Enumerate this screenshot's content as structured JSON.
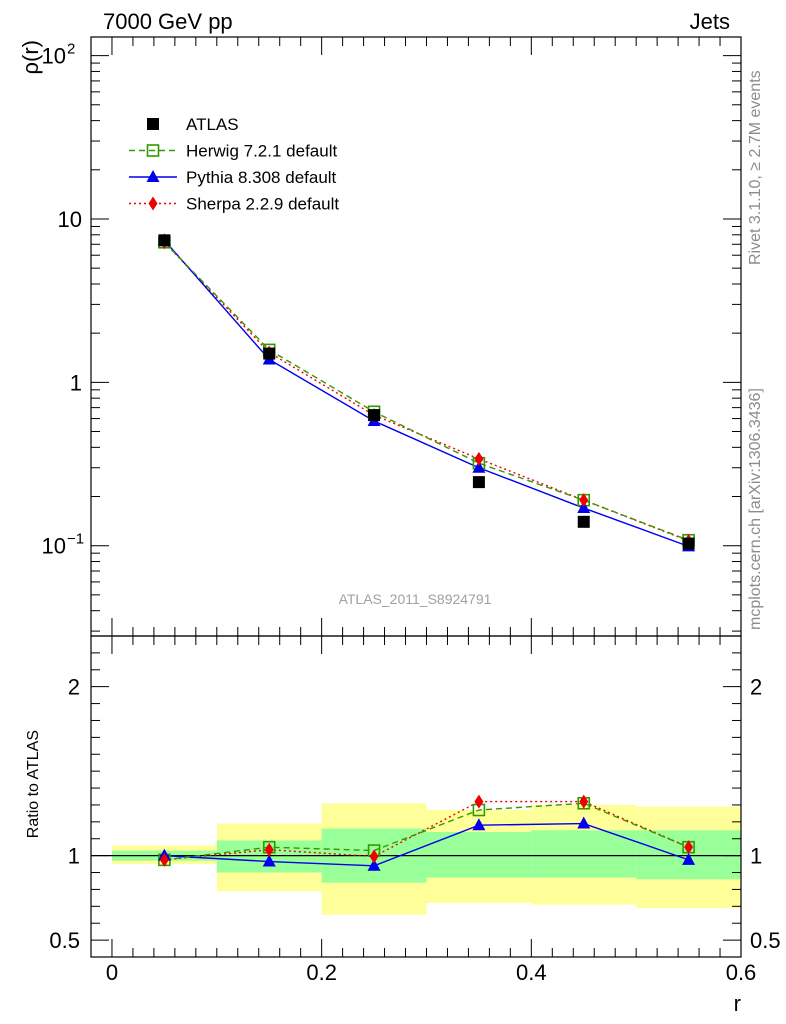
{
  "header": {
    "energy_label": "7000 GeV pp",
    "process_label": "Jets",
    "side_text_top": "Rivet 3.1.10, ≥ 2.7M events",
    "side_text_bottom": "mcplots.cern.ch [arXiv:1306.3436]",
    "analysis_id": "ATLAS_2011_S8924791"
  },
  "colors": {
    "atlas": "#000000",
    "herwig": "#339900",
    "pythia": "#0000ee",
    "sherpa": "#ee0000",
    "band_outer": "#ffff99",
    "band_inner": "#99ff99"
  },
  "legend": {
    "placement": "top-left",
    "entries": [
      {
        "label": "ATLAS",
        "series": "atlas"
      },
      {
        "label": "Herwig 7.2.1 default",
        "series": "herwig"
      },
      {
        "label": "Pythia 8.308 default",
        "series": "pythia"
      },
      {
        "label": "Sherpa 2.2.9 default",
        "series": "sherpa"
      }
    ]
  },
  "chart_data": [
    {
      "type": "line",
      "panel": "main",
      "ylabel": "ρ(r)",
      "yscale": "log",
      "xlim": [
        -0.02,
        0.6
      ],
      "ylim": [
        0.028,
        130
      ],
      "yticks": [
        {
          "value": 0.1,
          "label": "10",
          "exp": "−1"
        },
        {
          "value": 1,
          "label": "1",
          "exp": ""
        },
        {
          "value": 10,
          "label": "10",
          "exp": ""
        },
        {
          "value": 100,
          "label": "10",
          "exp": "2"
        }
      ],
      "x": [
        0.05,
        0.15,
        0.25,
        0.35,
        0.45,
        0.55
      ],
      "series": [
        {
          "key": "atlas",
          "name": "ATLAS",
          "style": "markers",
          "marker": "square-filled",
          "values": [
            7.4,
            1.5,
            0.63,
            0.245,
            0.14,
            0.103
          ]
        },
        {
          "key": "herwig",
          "name": "Herwig 7.2.1 default",
          "style": "dashed",
          "marker": "square-open",
          "values": [
            7.2,
            1.58,
            0.66,
            0.32,
            0.19,
            0.108
          ]
        },
        {
          "key": "pythia",
          "name": "Pythia 8.308 default",
          "style": "solid",
          "marker": "triangle",
          "values": [
            7.4,
            1.38,
            0.58,
            0.3,
            0.17,
            0.099
          ]
        },
        {
          "key": "sherpa",
          "name": "Sherpa 2.2.9 default",
          "style": "dotted",
          "marker": "diamond",
          "values": [
            7.2,
            1.52,
            0.63,
            0.34,
            0.19,
            0.107
          ]
        }
      ]
    },
    {
      "type": "line",
      "panel": "ratio",
      "xlabel": "r",
      "ylabel": "Ratio to ATLAS",
      "xlim": [
        -0.02,
        0.6
      ],
      "ylim": [
        0.4,
        2.3
      ],
      "yticks": [
        {
          "value": 0.5,
          "label": "0.5"
        },
        {
          "value": 1,
          "label": "1"
        },
        {
          "value": 2,
          "label": "2"
        }
      ],
      "xticks": [
        {
          "value": 0,
          "label": "0"
        },
        {
          "value": 0.2,
          "label": "0.2"
        },
        {
          "value": 0.4,
          "label": "0.4"
        },
        {
          "value": 0.6,
          "label": "0.6"
        }
      ],
      "bins": [
        {
          "xlo": 0.0,
          "xhi": 0.1,
          "inner": [
            0.97,
            1.03
          ],
          "outer": [
            0.95,
            1.06
          ]
        },
        {
          "xlo": 0.1,
          "xhi": 0.2,
          "inner": [
            0.9,
            1.09
          ],
          "outer": [
            0.79,
            1.19
          ]
        },
        {
          "xlo": 0.2,
          "xhi": 0.3,
          "inner": [
            0.84,
            1.16
          ],
          "outer": [
            0.65,
            1.31
          ]
        },
        {
          "xlo": 0.3,
          "xhi": 0.4,
          "inner": [
            0.87,
            1.14
          ],
          "outer": [
            0.72,
            1.27
          ]
        },
        {
          "xlo": 0.4,
          "xhi": 0.5,
          "inner": [
            0.87,
            1.15
          ],
          "outer": [
            0.71,
            1.3
          ]
        },
        {
          "xlo": 0.5,
          "xhi": 0.6,
          "inner": [
            0.86,
            1.15
          ],
          "outer": [
            0.69,
            1.29
          ]
        }
      ],
      "x": [
        0.05,
        0.15,
        0.25,
        0.35,
        0.45,
        0.55
      ],
      "series": [
        {
          "key": "herwig",
          "name": "Herwig 7.2.1 default",
          "style": "dashed",
          "marker": "square-open",
          "values": [
            0.975,
            1.05,
            1.03,
            1.27,
            1.31,
            1.05
          ]
        },
        {
          "key": "pythia",
          "name": "Pythia 8.308 default",
          "style": "solid",
          "marker": "triangle",
          "values": [
            1.0,
            0.965,
            0.94,
            1.18,
            1.19,
            0.975
          ]
        },
        {
          "key": "sherpa",
          "name": "Sherpa 2.2.9 default",
          "style": "dotted",
          "marker": "diamond",
          "values": [
            0.975,
            1.035,
            0.995,
            1.32,
            1.32,
            1.05
          ]
        }
      ]
    }
  ]
}
